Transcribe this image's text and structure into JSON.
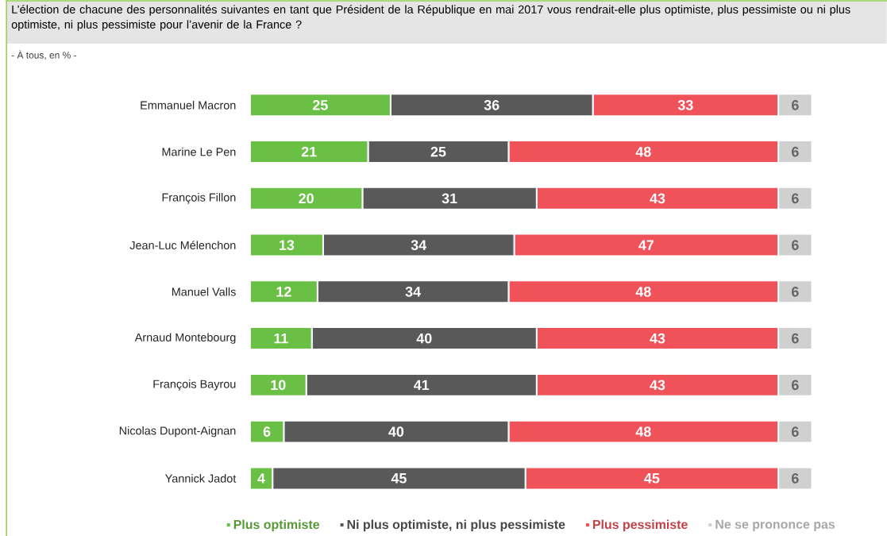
{
  "chart_data": {
    "type": "bar",
    "orientation": "horizontal",
    "stacked": true,
    "data_labels": true,
    "legend": "bottom",
    "title": "L’élection de chacune des personnalités suivantes en tant que Président de la République en mai 2017 vous rendrait-elle plus optimiste, plus pessimiste ou ni plus optimiste, ni plus pessimiste pour l’avenir de la France ?",
    "subtitle": "- À tous, en % -",
    "categories": [
      "Emmanuel Macron",
      "Marine Le Pen",
      "François Fillon",
      "Jean-Luc Mélenchon",
      "Manuel Valls",
      "Arnaud Montebourg",
      "François Bayrou",
      "Nicolas Dupont-Aignan",
      "Yannick Jadot"
    ],
    "series": [
      {
        "name": "Plus optimiste",
        "color": "#6abf45",
        "values": [
          25,
          21,
          20,
          13,
          12,
          11,
          10,
          6,
          4
        ]
      },
      {
        "name": "Ni plus optimiste, ni plus pessimiste",
        "color": "#595959",
        "values": [
          36,
          25,
          31,
          34,
          34,
          40,
          41,
          40,
          45
        ]
      },
      {
        "name": "Plus pessimiste",
        "color": "#f0525a",
        "values": [
          33,
          48,
          43,
          47,
          48,
          43,
          43,
          48,
          45
        ]
      },
      {
        "name": "Ne se prononce pas",
        "color": "#d0d0d0",
        "values": [
          6,
          6,
          6,
          6,
          6,
          6,
          6,
          6,
          6
        ]
      }
    ]
  }
}
